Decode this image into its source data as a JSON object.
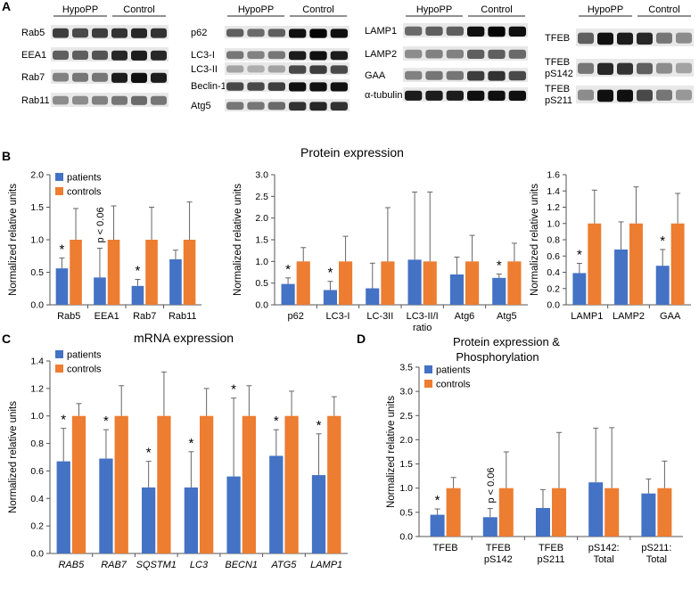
{
  "panel_labels": [
    "A",
    "B",
    "C",
    "D"
  ],
  "colors": {
    "patients": "#4472C4",
    "controls": "#ED7D31",
    "axis": "#555555",
    "error": "#666666"
  },
  "blots": [
    {
      "id": "blot1",
      "groups": [
        "HypoPP",
        "Control"
      ],
      "lanes": 6,
      "rows": [
        "Rab5",
        "EEA1",
        "Rab7",
        "Rab11"
      ],
      "intensity": [
        [
          0.75,
          0.7,
          0.75,
          0.8,
          0.85,
          0.8
        ],
        [
          0.6,
          0.6,
          0.65,
          0.85,
          0.9,
          0.85
        ],
        [
          0.45,
          0.5,
          0.5,
          0.9,
          0.95,
          0.9
        ],
        [
          0.4,
          0.4,
          0.45,
          0.5,
          0.55,
          0.5
        ]
      ]
    },
    {
      "id": "blot2",
      "groups": [
        "HypoPP",
        "Control"
      ],
      "lanes": 6,
      "rows": [
        "p62",
        "LC3-I",
        "LC3-II",
        "Beclin-1",
        "Atg5"
      ],
      "intensity": [
        [
          0.6,
          0.55,
          0.6,
          0.95,
          1.0,
          0.95
        ],
        [
          0.5,
          0.45,
          0.5,
          0.9,
          0.95,
          0.9
        ],
        [
          0.3,
          0.25,
          0.3,
          0.7,
          0.75,
          0.7
        ],
        [
          0.7,
          0.7,
          0.75,
          0.95,
          0.95,
          0.95
        ],
        [
          0.5,
          0.5,
          0.55,
          0.8,
          0.85,
          0.8
        ]
      ]
    },
    {
      "id": "blot3",
      "groups": [
        "HypoPP",
        "Control"
      ],
      "lanes": 6,
      "rows": [
        "LAMP1",
        "LAMP2",
        "GAA",
        "α-tubulin"
      ],
      "intensity": [
        [
          0.55,
          0.6,
          0.6,
          0.95,
          1.0,
          0.95
        ],
        [
          0.4,
          0.45,
          0.45,
          0.6,
          0.6,
          0.55
        ],
        [
          0.45,
          0.5,
          0.5,
          0.75,
          0.8,
          0.7
        ],
        [
          0.9,
          0.9,
          0.9,
          0.95,
          0.95,
          0.95
        ]
      ]
    },
    {
      "id": "blot4",
      "groups": [
        "HypoPP",
        "Control"
      ],
      "lanes": 6,
      "rows": [
        "TFEB",
        "TFEB pS142",
        "TFEB pS211"
      ],
      "intensity": [
        [
          0.6,
          0.95,
          0.9,
          0.85,
          0.5,
          0.4
        ],
        [
          0.5,
          0.85,
          0.8,
          0.6,
          0.4,
          0.3
        ],
        [
          0.4,
          0.95,
          0.95,
          0.7,
          0.5,
          0.35
        ]
      ]
    }
  ],
  "protein_title": "Protein expression",
  "mrna_title": "mRNA expression",
  "d_title_line1": "Protein expression &",
  "d_title_line2": "Phosphorylation",
  "legend": {
    "patients": "patients",
    "controls": "controls"
  },
  "ylabel": "Normalized relative units",
  "chart_data": [
    {
      "id": "B1",
      "type": "bar",
      "ylabel": "Normalized relative units",
      "ylim": [
        0,
        2.0
      ],
      "ticks": [
        0.0,
        0.5,
        1.0,
        1.5,
        2.0
      ],
      "tick_labels": [
        "0.0",
        "0.5",
        "1.0",
        "1.5",
        "2.0"
      ],
      "categories": [
        [
          "Rab5"
        ],
        [
          "EEA1"
        ],
        [
          "Rab7"
        ],
        [
          "Rab11"
        ]
      ],
      "italic": false,
      "series": [
        {
          "name": "patients",
          "values": [
            0.56,
            0.42,
            0.29,
            0.7
          ],
          "err": [
            0.16,
            0.45,
            0.1,
            0.14
          ]
        },
        {
          "name": "controls",
          "values": [
            1.0,
            1.0,
            1.0,
            1.0
          ],
          "err": [
            0.48,
            0.52,
            0.5,
            0.58
          ]
        }
      ],
      "annotations": [
        {
          "cat": 0,
          "text": "*"
        },
        {
          "cat": 1,
          "text": "p < 0.06",
          "rotate": true
        },
        {
          "cat": 2,
          "text": "*"
        }
      ],
      "legend": "top-left"
    },
    {
      "id": "B2",
      "type": "bar",
      "ylabel": "Normalized relative units",
      "ylim": [
        0,
        3.0
      ],
      "ticks": [
        0.0,
        0.5,
        1.0,
        1.5,
        2.0,
        2.5,
        3.0
      ],
      "tick_labels": [
        "0.0",
        "0.5",
        "1.0",
        "1.5",
        "2.0",
        "2.5",
        "3.0"
      ],
      "categories": [
        [
          "p62"
        ],
        [
          "LC3-I"
        ],
        [
          "LC-3II"
        ],
        [
          "LC3-II/I",
          "ratio"
        ],
        [
          "Atg6"
        ],
        [
          "Atg5"
        ]
      ],
      "italic": false,
      "series": [
        {
          "name": "patients",
          "values": [
            0.48,
            0.34,
            0.38,
            1.04,
            0.7,
            0.62
          ],
          "err": [
            0.14,
            0.2,
            0.58,
            1.56,
            0.4,
            0.09
          ]
        },
        {
          "name": "controls",
          "values": [
            1.0,
            1.0,
            1.0,
            1.0,
            1.0,
            1.0
          ],
          "err": [
            0.32,
            0.58,
            1.24,
            1.6,
            0.6,
            0.42
          ]
        }
      ],
      "annotations": [
        {
          "cat": 0,
          "text": "*"
        },
        {
          "cat": 1,
          "text": "*"
        },
        {
          "cat": 5,
          "text": "*"
        }
      ]
    },
    {
      "id": "B3",
      "type": "bar",
      "ylabel": "Normalized relative units",
      "ylim": [
        0,
        1.6
      ],
      "ticks": [
        0.0,
        0.2,
        0.4,
        0.6,
        0.8,
        1.0,
        1.2,
        1.4,
        1.6
      ],
      "tick_labels": [
        "0.0",
        "0.2",
        "0.4",
        "0.6",
        "0.8",
        "1.0",
        "1.2",
        "1.4",
        "1.6"
      ],
      "categories": [
        [
          "LAMP1"
        ],
        [
          "LAMP2"
        ],
        [
          "GAA"
        ]
      ],
      "italic": false,
      "series": [
        {
          "name": "patients",
          "values": [
            0.39,
            0.68,
            0.48
          ],
          "err": [
            0.12,
            0.34,
            0.2
          ]
        },
        {
          "name": "controls",
          "values": [
            1.0,
            1.0,
            1.0
          ],
          "err": [
            0.41,
            0.45,
            0.37
          ]
        }
      ],
      "annotations": [
        {
          "cat": 0,
          "text": "*"
        },
        {
          "cat": 2,
          "text": "*"
        }
      ]
    },
    {
      "id": "C",
      "type": "bar",
      "ylabel": "Normalized relative units",
      "ylim": [
        0,
        1.4
      ],
      "ticks": [
        0.0,
        0.2,
        0.4,
        0.6,
        0.8,
        1.0,
        1.2,
        1.4
      ],
      "tick_labels": [
        "0.0",
        "0.2",
        "0.4",
        "0.6",
        "0.8",
        "1.0",
        "1.2",
        "1.4"
      ],
      "categories": [
        [
          "RAB5"
        ],
        [
          "RAB7"
        ],
        [
          "SQSTM1"
        ],
        [
          "LC3"
        ],
        [
          "BECN1"
        ],
        [
          "ATG5"
        ],
        [
          "LAMP1"
        ]
      ],
      "italic": true,
      "series": [
        {
          "name": "patients",
          "values": [
            0.67,
            0.69,
            0.48,
            0.48,
            0.56,
            0.71,
            0.57
          ],
          "err": [
            0.24,
            0.21,
            0.19,
            0.26,
            0.57,
            0.19,
            0.3
          ]
        },
        {
          "name": "controls",
          "values": [
            1.0,
            1.0,
            1.0,
            1.0,
            1.0,
            1.0,
            1.0
          ],
          "err": [
            0.09,
            0.22,
            0.32,
            0.2,
            0.22,
            0.18,
            0.14
          ]
        }
      ],
      "annotations": [
        {
          "cat": 0,
          "text": "*"
        },
        {
          "cat": 1,
          "text": "*"
        },
        {
          "cat": 2,
          "text": "*"
        },
        {
          "cat": 3,
          "text": "*"
        },
        {
          "cat": 4,
          "text": "*"
        },
        {
          "cat": 5,
          "text": "*"
        },
        {
          "cat": 6,
          "text": "*"
        }
      ],
      "legend": "top-left"
    },
    {
      "id": "D",
      "type": "bar",
      "ylabel": "Normalized relative units",
      "ylim": [
        0,
        3.5
      ],
      "ticks": [
        0.0,
        0.5,
        1.0,
        1.5,
        2.0,
        2.5,
        3.0,
        3.5
      ],
      "tick_labels": [
        "0.0",
        "0.5",
        "1.0",
        "1.5",
        "2.0",
        "2.5",
        "3.0",
        "3.5"
      ],
      "categories": [
        [
          "TFEB"
        ],
        [
          "TFEB",
          "pS142"
        ],
        [
          "TFEB",
          "pS211"
        ],
        [
          "pS142:",
          "Total"
        ],
        [
          "pS211:",
          "Total"
        ]
      ],
      "italic": false,
      "series": [
        {
          "name": "patients",
          "values": [
            0.45,
            0.4,
            0.59,
            1.12,
            0.89
          ],
          "err": [
            0.12,
            0.18,
            0.38,
            1.12,
            0.3
          ]
        },
        {
          "name": "controls",
          "values": [
            1.0,
            1.0,
            1.0,
            1.0,
            1.0
          ],
          "err": [
            0.22,
            0.75,
            1.15,
            1.25,
            0.56
          ]
        }
      ],
      "annotations": [
        {
          "cat": 0,
          "text": "*"
        },
        {
          "cat": 1,
          "text": "p < 0.06",
          "rotate": true
        }
      ],
      "legend": "top-left"
    }
  ]
}
